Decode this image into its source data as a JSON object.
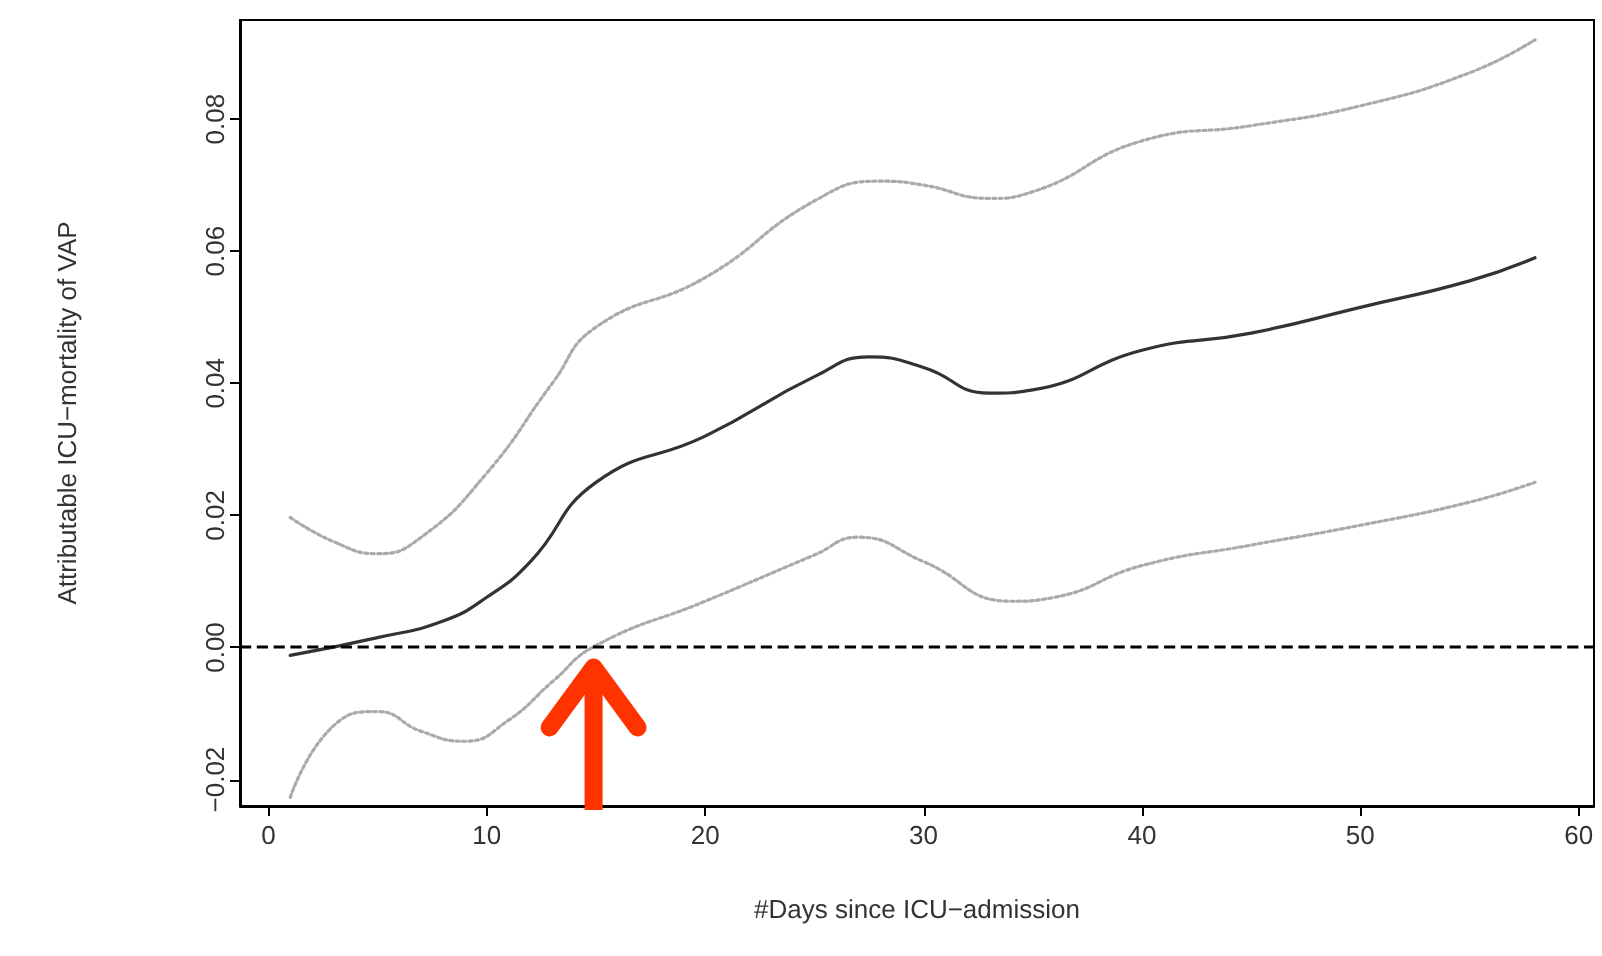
{
  "chart_data": {
    "type": "line",
    "xlabel": "#Days since ICU−admission",
    "ylabel": "Attributable ICU−mortality of VAP",
    "xlim": [
      -1.3,
      60.7
    ],
    "ylim": [
      -0.024,
      0.095
    ],
    "xticks": [
      0,
      10,
      20,
      30,
      40,
      50,
      60
    ],
    "yticks": [
      {
        "value": -0.02,
        "label": "−0.02"
      },
      {
        "value": 0,
        "label": "0.00"
      },
      {
        "value": 0.02,
        "label": "0.02"
      },
      {
        "value": 0.04,
        "label": "0.04"
      },
      {
        "value": 0.06,
        "label": "0.06"
      },
      {
        "value": 0.08,
        "label": "0.08"
      }
    ],
    "grid": false,
    "marker": "none",
    "series": [
      {
        "color": "#333333",
        "line_style": "solid",
        "x": [
          1,
          5,
          8,
          10,
          12,
          15,
          20,
          25,
          27.5,
          30,
          33,
          35,
          40,
          45,
          50,
          55,
          58
        ],
        "values": [
          -0.0012,
          0.0015,
          0.004,
          0.0076,
          0.013,
          0.025,
          0.032,
          0.041,
          0.044,
          0.0424,
          0.0385,
          0.039,
          0.045,
          0.0476,
          0.0515,
          0.0555,
          0.059
        ]
      },
      {
        "color": "#aaaaaa",
        "line_style": "dotted",
        "x": [
          1,
          3,
          5,
          7,
          10,
          13,
          15,
          20,
          25,
          28,
          30,
          33,
          35,
          40,
          45,
          50,
          55,
          58
        ],
        "values": [
          0.0197,
          0.016,
          0.0142,
          0.0167,
          0.0264,
          0.04,
          0.0485,
          0.056,
          0.0676,
          0.0706,
          0.07,
          0.068,
          0.069,
          0.0767,
          0.079,
          0.082,
          0.087,
          0.092
        ]
      },
      {
        "color": "#aaaaaa",
        "line_style": "dotted",
        "x": [
          1,
          3,
          5,
          7,
          9,
          11,
          13,
          15,
          20,
          25,
          27,
          30,
          34,
          36,
          40,
          45,
          50,
          55,
          58
        ],
        "values": [
          -0.0227,
          -0.0118,
          -0.0097,
          -0.0127,
          -0.0142,
          -0.011,
          -0.0052,
          0.0003,
          0.007,
          0.014,
          0.0167,
          0.013,
          0.007,
          0.0076,
          0.0124,
          0.0155,
          0.0185,
          0.022,
          0.025
        ]
      }
    ],
    "ref_lines": [
      {
        "axis": "y",
        "value": 0,
        "color": "#000000",
        "line_style": "dashed"
      }
    ]
  }
}
